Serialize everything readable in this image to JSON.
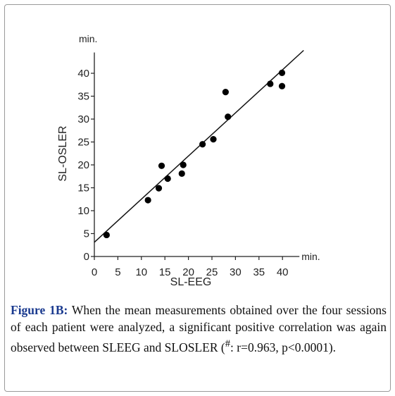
{
  "chart_data": {
    "type": "scatter",
    "xlabel": "SL-EEG",
    "ylabel": "SL-OSLER",
    "x_unit": "min.",
    "y_unit": "min.",
    "xlim": [
      0,
      43
    ],
    "ylim": [
      0,
      43
    ],
    "x_ticks": [
      "0",
      "5",
      "10",
      "15",
      "20",
      "25",
      "30",
      "35",
      "40"
    ],
    "y_ticks": [
      "0",
      "5",
      "10",
      "15",
      "20",
      "25",
      "30",
      "35",
      "40"
    ],
    "points": [
      {
        "x": 2.6,
        "y": 4.7
      },
      {
        "x": 11.4,
        "y": 12.3
      },
      {
        "x": 13.7,
        "y": 14.9
      },
      {
        "x": 14.3,
        "y": 19.8
      },
      {
        "x": 15.6,
        "y": 17.0
      },
      {
        "x": 18.6,
        "y": 18.1
      },
      {
        "x": 18.9,
        "y": 20.0
      },
      {
        "x": 23.0,
        "y": 24.5
      },
      {
        "x": 25.3,
        "y": 25.6
      },
      {
        "x": 27.9,
        "y": 35.9
      },
      {
        "x": 28.4,
        "y": 30.5
      },
      {
        "x": 37.4,
        "y": 37.7
      },
      {
        "x": 39.9,
        "y": 40.1
      },
      {
        "x": 39.9,
        "y": 37.2
      }
    ],
    "regression_line": {
      "x": [
        0,
        44.5
      ],
      "y": [
        3.1,
        45.0
      ]
    },
    "grid": false,
    "legend": "none"
  },
  "caption": {
    "label": "Figure 1B:",
    "text_before": " When the mean measurements obtained over the four sessions of each patient were analyzed, a significant positive correlation was again observed between SLEEG and SLOSLER (",
    "sup": "#",
    "text_after": ": r=0.963, p<0.0001)."
  }
}
